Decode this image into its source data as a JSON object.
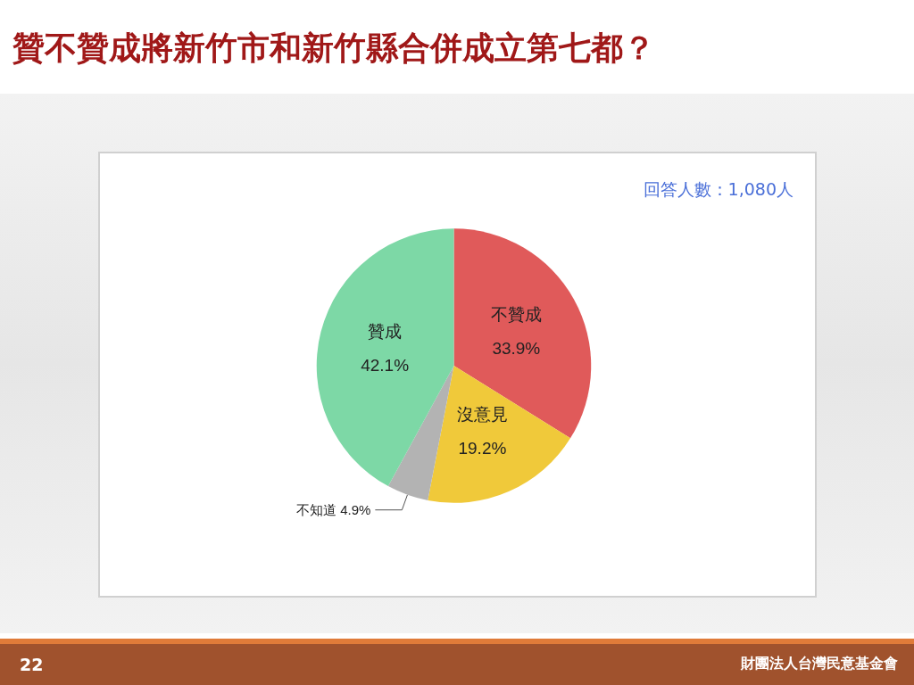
{
  "chart_data": {
    "type": "pie",
    "title": "贊不贊成將新竹市和新竹縣合併成立第七都？",
    "categories": [
      "不贊成",
      "沒意見",
      "不知道",
      "贊成"
    ],
    "values": [
      33.9,
      19.2,
      4.9,
      42.1
    ],
    "colors": [
      "#e05a5a",
      "#f0c93a",
      "#b3b3b3",
      "#7dd8a6"
    ],
    "value_labels": [
      "33.9%",
      "19.2%",
      "4.9%",
      "42.1%"
    ],
    "annotations": [
      "回答人數：1,080人",
      "22",
      "財團法人台灣民意基金會"
    ]
  }
}
